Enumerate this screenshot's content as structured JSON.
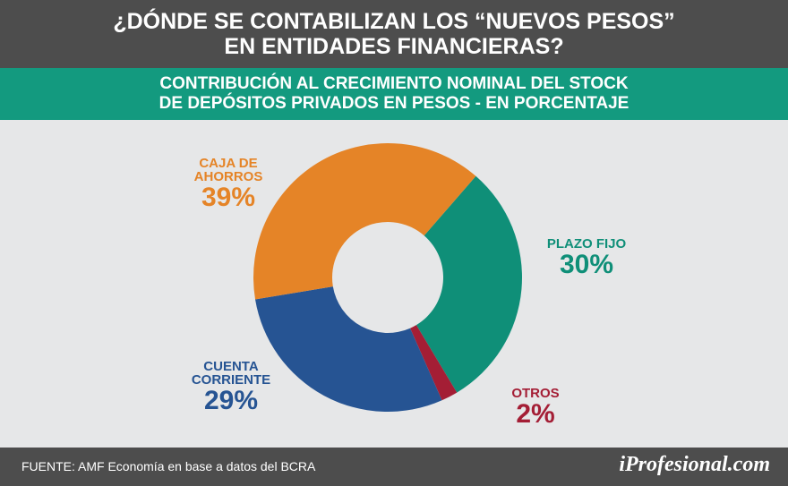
{
  "chart_data": {
    "type": "donut",
    "title": "¿DÓNDE SE CONTABILIZAN LOS “NUEVOS PESOS”\nEN ENTIDADES FINANCIERAS?",
    "subtitle": "CONTRIBUCIÓN AL CRECIMIENTO NOMINAL DEL STOCK\nDE DEPÓSITOS PRIVADOS EN PESOS - EN PORCENTAJE",
    "categories": [
      "PLAZO FIJO",
      "OTROS",
      "CUENTA\nCORRIENTE",
      "CAJA DE\nAHORROS"
    ],
    "values": [
      30,
      2,
      29,
      39
    ],
    "value_labels": [
      "30%",
      "2%",
      "29%",
      "39%"
    ],
    "colors": [
      "#0f8f78",
      "#a41e35",
      "#265493",
      "#e58427"
    ],
    "source": "FUENTE: AMF Economía en base a datos del BCRA",
    "brand": "iProfesional.com"
  }
}
